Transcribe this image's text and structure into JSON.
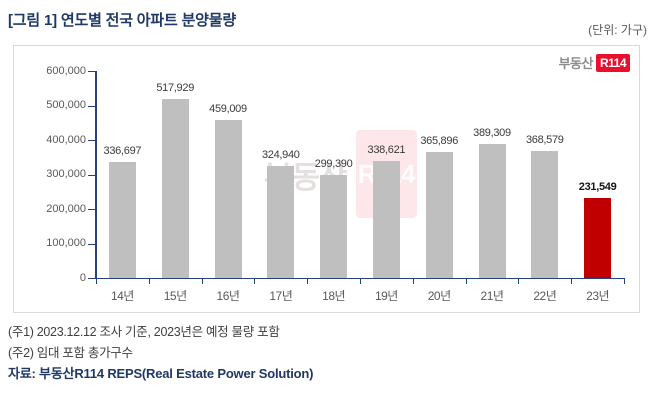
{
  "header": {
    "title": "[그림 1] 연도별 전국 아파트 분양물량",
    "unit_label": "(단위: 가구)"
  },
  "logo": {
    "text": "부동산",
    "badge": "R114"
  },
  "watermark": {
    "text": "부동산",
    "badge": "R114"
  },
  "chart_data": {
    "type": "bar",
    "title": "연도별 전국 아파트 분양물량",
    "unit": "가구",
    "categories": [
      "14년",
      "15년",
      "16년",
      "17년",
      "18년",
      "19년",
      "20년",
      "21년",
      "22년",
      "23년"
    ],
    "values": [
      336697,
      517929,
      459009,
      324940,
      299390,
      338621,
      365896,
      389309,
      368579,
      231549
    ],
    "value_labels": [
      "336,697",
      "517,929",
      "459,009",
      "324,940",
      "299,390",
      "338,621",
      "365,896",
      "389,309",
      "368,579",
      "231,549"
    ],
    "xlabel": "",
    "ylabel": "",
    "ylim": [
      0,
      600000
    ],
    "ytick_interval": 100000,
    "ytick_labels": [
      "0",
      "100,000",
      "200,000",
      "300,000",
      "400,000",
      "500,000",
      "600,000"
    ],
    "grid": false,
    "legend": false,
    "bar_color": "#BFBFBF",
    "highlight_index": 9,
    "highlight_color": "#C00000",
    "axis_color": "#24417B"
  },
  "notes": {
    "note1": "(주1) 2023.12.12 조사 기준, 2023년은 예정 물량 포함",
    "note2": "(주2) 임대 포함 총가구수",
    "source": "자료: 부동산R114 REPS(Real Estate Power Solution)"
  },
  "colors": {
    "title_navy": "#1F3864",
    "bar_gray": "#BFBFBF",
    "highlight_red": "#C00000",
    "axis_navy": "#24417B",
    "logo_red": "#E8112D",
    "text_gray": "#595959",
    "frame_border": "#D9D9D9"
  }
}
